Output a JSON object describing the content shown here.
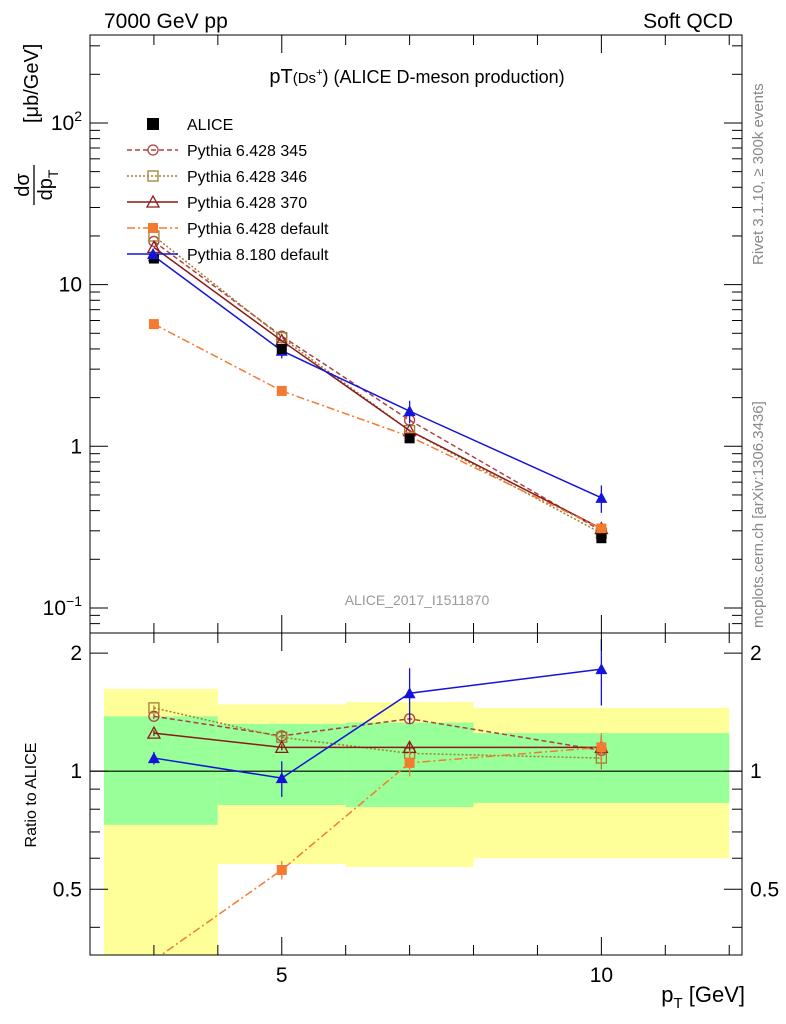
{
  "header": {
    "left": "7000 GeV pp",
    "right": "Soft QCD",
    "side_top": "Rivet 3.1.10, ≥ 300k events",
    "side_bottom": "mcplots.cern.ch [arXiv:1306.3436]"
  },
  "colors": {
    "ALICE": "#000000",
    "Pythia 6.428 345": "#b04040",
    "Pythia 6.428 346": "#a08030",
    "Pythia 6.428 370": "#8b1a1a",
    "Pythia 6.428 default": "#f47a30",
    "Pythia 8.180 default": "#1414d8",
    "band_inner": "#99ff99",
    "band_outer": "#ffff99"
  },
  "chart_data": {
    "type": "line",
    "title_main": "pT",
    "title_sub": "(Ds",
    "title_sup": "+",
    "title_end": ") (ALICE D-meson production)",
    "watermark": "ALICE_2017_I1511870",
    "xlabel_main": "p",
    "xlabel_sub": "T",
    "xlabel_unit": " [GeV]",
    "ylabel_num": "dσ",
    "ylabel_den": "dp",
    "ylabel_den_sub": "T",
    "ylabel_unit": "[μb/GeV]",
    "ratio_ylabel": "Ratio to ALICE",
    "y_scale": "log",
    "xlim": [
      2,
      12.2
    ],
    "ylim": [
      0.07,
      350
    ],
    "ratio_ylim": [
      0.34,
      2.25
    ],
    "x_tick_labels": [
      "5",
      "10"
    ],
    "y_tick_labels": [
      {
        "base": "10",
        "exp": "−1",
        "value": 0.1
      },
      {
        "base": "1",
        "exp": "",
        "value": 1
      },
      {
        "base": "10",
        "exp": "",
        "value": 10
      },
      {
        "base": "10",
        "exp": "2",
        "value": 100
      }
    ],
    "ratio_tick_labels": [
      "0.5",
      "1",
      "2"
    ],
    "ratio_tick_values": [
      0.5,
      1,
      2
    ],
    "x": [
      3,
      5,
      7,
      10
    ],
    "data": {
      "name": "ALICE",
      "values": [
        14.5,
        4.0,
        1.12,
        0.27
      ],
      "bins": [
        [
          2,
          4
        ],
        [
          4,
          6
        ],
        [
          6,
          8
        ],
        [
          8,
          12
        ]
      ],
      "band_inner": [
        [
          0.73,
          1.38
        ],
        [
          0.82,
          1.32
        ],
        [
          0.81,
          1.33
        ],
        [
          0.83,
          1.25
        ]
      ],
      "band_outer": [
        [
          0.3,
          1.62
        ],
        [
          0.58,
          1.48
        ],
        [
          0.57,
          1.5
        ],
        [
          0.6,
          1.45
        ]
      ]
    },
    "series": [
      {
        "name": "Pythia 6.428 345",
        "values": [
          18.5,
          4.8,
          1.45,
          0.3
        ],
        "ratio": [
          1.38,
          1.23,
          1.36,
          1.13
        ],
        "ratio_err": [
          0.02,
          0.02,
          0.04,
          0.08
        ],
        "dash": "5,3",
        "marker": "circle"
      },
      {
        "name": "Pythia 6.428 346",
        "values": [
          20.0,
          4.7,
          1.25,
          0.29
        ],
        "ratio": [
          1.45,
          1.22,
          1.11,
          1.08
        ],
        "ratio_err": [
          0.02,
          0.02,
          0.04,
          0.07
        ],
        "dash": "2,2",
        "marker": "square-open"
      },
      {
        "name": "Pythia 6.428 370",
        "values": [
          17.0,
          4.5,
          1.25,
          0.31
        ],
        "ratio": [
          1.25,
          1.15,
          1.15,
          1.15
        ],
        "ratio_err": [
          0.02,
          0.02,
          0.04,
          0.08
        ],
        "dash": "",
        "marker": "triangle-open"
      },
      {
        "name": "Pythia 6.428 default",
        "values": [
          5.7,
          2.2,
          1.15,
          0.31
        ],
        "ratio": [
          0.33,
          0.56,
          1.05,
          1.15
        ],
        "ratio_err": [
          0.01,
          0.03,
          0.08,
          0.1
        ],
        "dash": "8,3,2,3",
        "marker": "square-filled"
      },
      {
        "name": "Pythia 8.180 default",
        "values": [
          15.0,
          3.9,
          1.65,
          0.48
        ],
        "ratio": [
          1.08,
          0.96,
          1.58,
          1.82
        ],
        "ratio_err": [
          0.04,
          0.1,
          0.25,
          0.35
        ],
        "dash": "",
        "marker": "triangle-filled"
      }
    ]
  }
}
